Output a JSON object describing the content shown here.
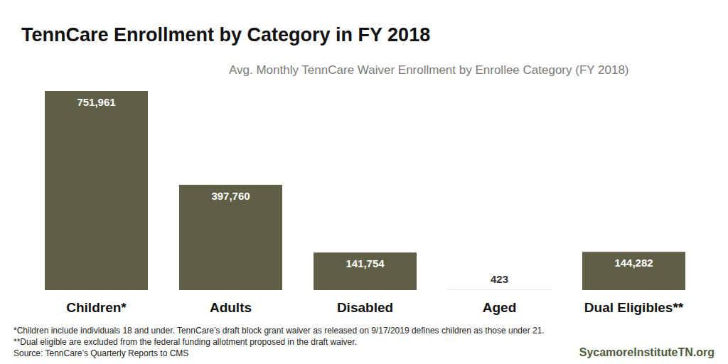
{
  "chart_data": {
    "type": "bar",
    "title": "TennCare Enrollment by Category in FY 2018",
    "subtitle": "Avg. Monthly TennCare Waiver Enrollment by Enrollee Category (FY 2018)",
    "categories": [
      "Children*",
      "Adults",
      "Disabled",
      "Aged",
      "Dual Eligibles**"
    ],
    "values": [
      751961,
      397760,
      141754,
      423,
      144282
    ],
    "value_labels": [
      "751,961",
      "397,760",
      "141,754",
      "423",
      "144,282"
    ],
    "color": "#5e5f46",
    "ylim": [
      0,
      760000
    ],
    "data_labels": true,
    "tick_labels": "x",
    "grid": false,
    "notes": [
      "*Children include individuals 18 and under. TennCare’s draft block grant waiver as released on 9/17/2019 defines children as those under 21.",
      "**Dual eligible are excluded from the federal funding allotment proposed in the draft waiver.",
      "Source: TennCare’s Quarterly Reports to CMS"
    ],
    "credit": "SycamoreInstituteTN.org"
  }
}
